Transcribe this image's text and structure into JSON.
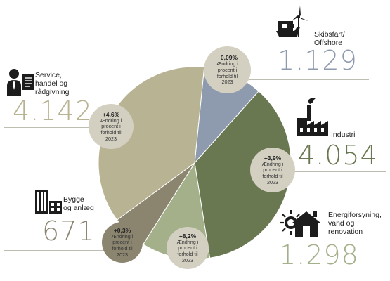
{
  "chart_data": {
    "type": "pie",
    "title": "",
    "colors": {
      "skibsfart": "#8e9bae",
      "industri": "#6a7852",
      "energi": "#a3b08a",
      "bygge": "#8b8570",
      "service": "#b8b393",
      "bubble": "#d3d0c2"
    },
    "slices": [
      {
        "key": "skibsfart",
        "label": "Skibsfart/\nOffshore",
        "value": 1129,
        "display": "1.129",
        "change": "+0,09%"
      },
      {
        "key": "industri",
        "label": "Industri",
        "value": 4054,
        "display": "4.054",
        "change": "+3,9%"
      },
      {
        "key": "energi",
        "label": "Energiforsyning,\nvand og\nrenovation",
        "value": 1298,
        "display": "1.298",
        "change": "+8,2%"
      },
      {
        "key": "bygge",
        "label": "Bygge\nog anlæg",
        "value": 671,
        "display": "671",
        "change": "+0,3%"
      },
      {
        "key": "service",
        "label": "Service,\nhandel og\nrådgivning",
        "value": 4142,
        "display": "4.142",
        "change": "+4,6%"
      }
    ],
    "bubble_text": "Ændring i\nprocent i\nforhold til\n2023"
  }
}
